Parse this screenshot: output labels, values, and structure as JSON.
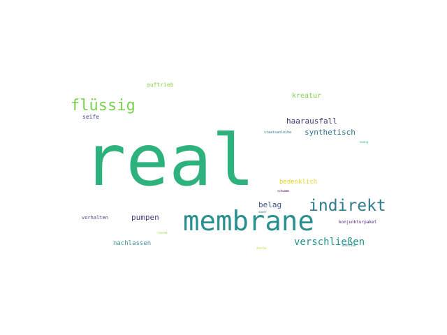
{
  "word_cloud": {
    "words": [
      {
        "text": "real",
        "weight": 1.0,
        "color": "#2db27d"
      },
      {
        "text": "membrane",
        "weight": 0.5,
        "color": "#2a8f8f"
      },
      {
        "text": "indirekt",
        "weight": 0.28,
        "color": "#2e7c8e"
      },
      {
        "text": "flüssig",
        "weight": 0.27,
        "color": "#7ad151"
      },
      {
        "text": "verschließen",
        "weight": 0.17,
        "color": "#21918c"
      },
      {
        "text": "haarausfall",
        "weight": 0.14,
        "color": "#3b2f75"
      },
      {
        "text": "synthetisch",
        "weight": 0.14,
        "color": "#2c728e"
      },
      {
        "text": "pumpen",
        "weight": 0.13,
        "color": "#433e85"
      },
      {
        "text": "belag",
        "weight": 0.13,
        "color": "#3b528b"
      },
      {
        "text": "kreatur",
        "weight": 0.12,
        "color": "#7ad151"
      },
      {
        "text": "nachlassen",
        "weight": 0.11,
        "color": "#3e8f9a"
      },
      {
        "text": "bedenklich",
        "weight": 0.11,
        "color": "#e6d22a"
      },
      {
        "text": "auftrieb",
        "weight": 0.1,
        "color": "#8fd14f"
      },
      {
        "text": "seife",
        "weight": 0.1,
        "color": "#404688"
      },
      {
        "text": "vorhalten",
        "weight": 0.09,
        "color": "#414487"
      },
      {
        "text": "konjunkturpaket",
        "weight": 0.07,
        "color": "#482475"
      },
      {
        "text": "staatsanleihe",
        "weight": 0.06,
        "color": "#2a788e"
      },
      {
        "text": "zwang",
        "weight": 0.05,
        "color": "#35b779"
      },
      {
        "text": "schwamm",
        "weight": 0.05,
        "color": "#440154"
      },
      {
        "text": "rasend",
        "weight": 0.04,
        "color": "#90d743"
      },
      {
        "text": "dusche",
        "weight": 0.04,
        "color": "#b5de2b"
      },
      {
        "text": "sauer",
        "weight": 0.04,
        "color": "#31688e"
      },
      {
        "text": "wohnraum",
        "weight": 0.04,
        "color": "#26828e"
      }
    ]
  }
}
